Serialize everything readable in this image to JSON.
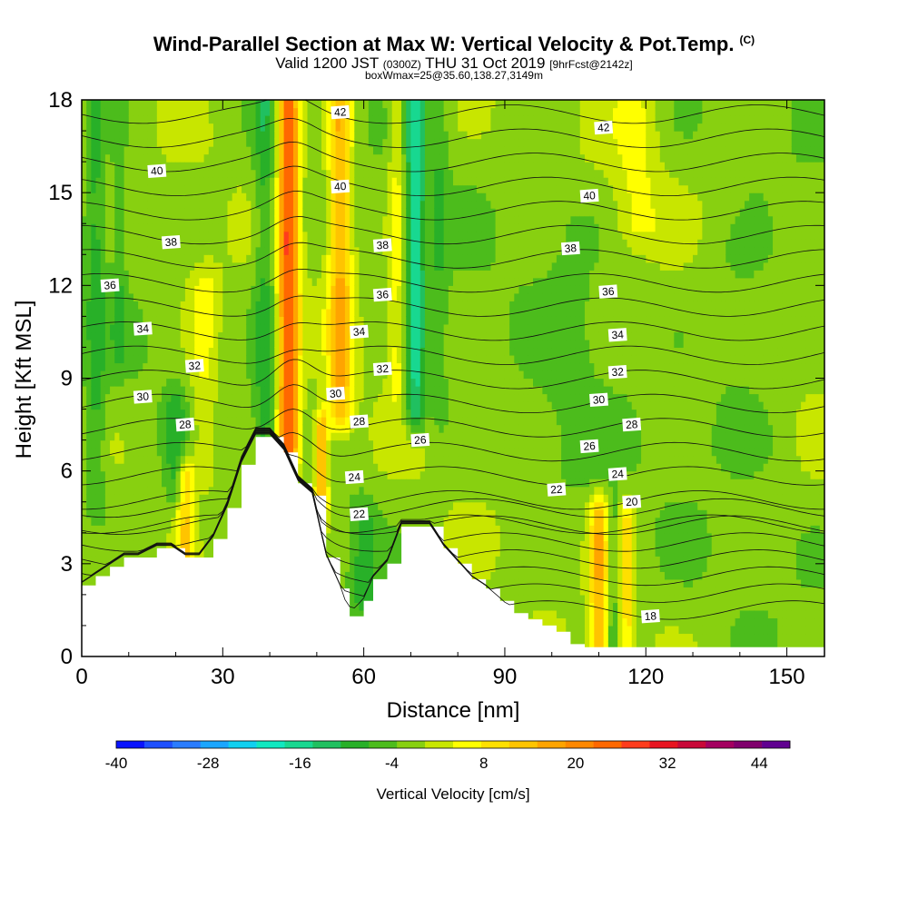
{
  "chart_data": {
    "type": "heatmap",
    "title": "Wind-Parallel Section at Max W: Vertical Velocity & Pot.Temp.",
    "title_mark": "(C)",
    "subtitle_main": "Valid 1200 JST",
    "subtitle_utc": "(0300Z)",
    "subtitle_date": "THU 31 Oct 2019",
    "subtitle_fcst": "[9hrFcst@2142z]",
    "box_line": "boxWmax=25@35.60,138.27,3149m",
    "xlabel": "Distance [nm]",
    "ylabel": "Height [Kft MSL]",
    "xlim": [
      0,
      158
    ],
    "ylim": [
      0,
      18
    ],
    "x_ticks": [
      0,
      30,
      60,
      90,
      120,
      150
    ],
    "y_ticks": [
      0,
      3,
      6,
      9,
      12,
      15,
      18
    ],
    "colorbar": {
      "label": "Vertical Velocity [cm/s]",
      "tick_values": [
        -40,
        -28,
        -16,
        -4,
        8,
        20,
        32,
        44
      ],
      "tick_labels": [
        "-40",
        "-28",
        "-16",
        "-4",
        "8",
        "20",
        "32",
        "44"
      ],
      "range": [
        -40,
        48
      ],
      "step": 4,
      "colors": [
        "#0a14ff",
        "#1e50ff",
        "#2a7cff",
        "#1aa6ff",
        "#10d0f0",
        "#10e8c0",
        "#18d890",
        "#20c060",
        "#28b028",
        "#4cbc1c",
        "#88d010",
        "#c8e600",
        "#ffff00",
        "#ffe000",
        "#ffc400",
        "#ffa400",
        "#ff8800",
        "#ff6800",
        "#ff3c1c",
        "#e81420",
        "#c80838",
        "#a40060",
        "#80006c",
        "#600090"
      ]
    },
    "terrain_profile": {
      "distance_nm": [
        0,
        3,
        6,
        9,
        12,
        16,
        19,
        22,
        25,
        28,
        31,
        34,
        37,
        40,
        43,
        46,
        49,
        52,
        55,
        57,
        60,
        62,
        65,
        68,
        71,
        74,
        77,
        80,
        83,
        86,
        89,
        92,
        95,
        98,
        101,
        104,
        107,
        110,
        115,
        120,
        125,
        130,
        135,
        140,
        145,
        150,
        155,
        158
      ],
      "height_kft": [
        2.3,
        2.6,
        2.9,
        3.2,
        3.2,
        3.5,
        3.5,
        3.2,
        3.2,
        3.8,
        4.8,
        6.2,
        7.1,
        7.1,
        6.6,
        5.6,
        5.2,
        3.2,
        2.2,
        1.3,
        1.8,
        2.5,
        3.0,
        4.2,
        4.2,
        4.2,
        3.5,
        3.0,
        2.5,
        2.2,
        1.8,
        1.4,
        1.2,
        1.0,
        0.8,
        0.4,
        0.3,
        0.3,
        0.3,
        0.3,
        0.3,
        0.3,
        0.3,
        0.3,
        0.3,
        0.3,
        0.3,
        0.3
      ]
    },
    "theta_contours": [
      {
        "value": 18,
        "label_at": [
          121,
          1.3
        ]
      },
      {
        "value": 20,
        "label_at": [
          117,
          5.0
        ]
      },
      {
        "value": 22,
        "label_at": [
          59,
          4.6
        ]
      },
      {
        "value": 22,
        "label_at": [
          101,
          5.4
        ]
      },
      {
        "value": 24,
        "label_at": [
          58,
          5.8
        ]
      },
      {
        "value": 24,
        "label_at": [
          114,
          5.9
        ]
      },
      {
        "value": 26,
        "label_at": [
          72,
          7.0
        ]
      },
      {
        "value": 26,
        "label_at": [
          108,
          6.8
        ]
      },
      {
        "value": 28,
        "label_at": [
          22,
          7.5
        ]
      },
      {
        "value": 28,
        "label_at": [
          59,
          7.6
        ]
      },
      {
        "value": 28,
        "label_at": [
          117,
          7.5
        ]
      },
      {
        "value": 30,
        "label_at": [
          13,
          8.4
        ]
      },
      {
        "value": 30,
        "label_at": [
          54,
          8.5
        ]
      },
      {
        "value": 30,
        "label_at": [
          110,
          8.3
        ]
      },
      {
        "value": 32,
        "label_at": [
          24,
          9.4
        ]
      },
      {
        "value": 32,
        "label_at": [
          64,
          9.3
        ]
      },
      {
        "value": 32,
        "label_at": [
          114,
          9.2
        ]
      },
      {
        "value": 34,
        "label_at": [
          13,
          10.6
        ]
      },
      {
        "value": 34,
        "label_at": [
          59,
          10.5
        ]
      },
      {
        "value": 34,
        "label_at": [
          114,
          10.4
        ]
      },
      {
        "value": 36,
        "label_at": [
          6,
          12.0
        ]
      },
      {
        "value": 36,
        "label_at": [
          64,
          11.7
        ]
      },
      {
        "value": 36,
        "label_at": [
          112,
          11.8
        ]
      },
      {
        "value": 38,
        "label_at": [
          19,
          13.4
        ]
      },
      {
        "value": 38,
        "label_at": [
          64,
          13.3
        ]
      },
      {
        "value": 38,
        "label_at": [
          104,
          13.2
        ]
      },
      {
        "value": 40,
        "label_at": [
          16,
          15.7
        ]
      },
      {
        "value": 40,
        "label_at": [
          55,
          15.2
        ]
      },
      {
        "value": 40,
        "label_at": [
          108,
          14.9
        ]
      },
      {
        "value": 42,
        "label_at": [
          55,
          17.6
        ]
      },
      {
        "value": 42,
        "label_at": [
          111,
          17.1
        ]
      }
    ],
    "w_field": {
      "background_cm_s": 2,
      "features": [
        {
          "x": 44,
          "x_half_width": 2.2,
          "y_min": 6.5,
          "y_max": 18,
          "w": 30
        },
        {
          "x": 55,
          "x_half_width": 2.5,
          "y_min": 8,
          "y_max": 18,
          "w": 18
        },
        {
          "x": 51,
          "x_half_width": 1.5,
          "y_min": 5.2,
          "y_max": 7.2,
          "w": 20
        },
        {
          "x": 39,
          "x_half_width": 2.5,
          "y_min": 7,
          "y_max": 18,
          "w": -8
        },
        {
          "x": 71,
          "x_half_width": 2.0,
          "y_min": 8,
          "y_max": 18,
          "w": -16
        },
        {
          "x": 76,
          "x_half_width": 2.0,
          "y_min": 8,
          "y_max": 18,
          "w": -5
        },
        {
          "x": 67,
          "x_half_width": 1.8,
          "y_min": 9,
          "y_max": 18,
          "w": 8
        },
        {
          "x": 3,
          "x_half_width": 2.0,
          "y_min": 5,
          "y_max": 18,
          "w": -7
        },
        {
          "x": 8,
          "x_half_width": 1.5,
          "y_min": 10,
          "y_max": 18,
          "w": -5
        },
        {
          "x": 22,
          "x_half_width": 1.8,
          "y_min": 3.5,
          "y_max": 5.8,
          "w": 14
        },
        {
          "x": 26,
          "x_half_width": 3.0,
          "y_min": 6,
          "y_max": 12,
          "w": 7
        },
        {
          "x": 20,
          "x_half_width": 2.0,
          "y_min": 5.5,
          "y_max": 8,
          "w": -7
        },
        {
          "x": 110,
          "x_half_width": 1.8,
          "y_min": 0.5,
          "y_max": 4.5,
          "w": 17
        },
        {
          "x": 116,
          "x_half_width": 1.5,
          "y_min": 0.5,
          "y_max": 4.5,
          "w": 11
        },
        {
          "x": 113,
          "x_half_width": 1.2,
          "y_min": 0.5,
          "y_max": 4.5,
          "w": -5
        },
        {
          "x": 60,
          "x_half_width": 3.0,
          "y_min": 2.0,
          "y_max": 4.5,
          "w": -7
        },
        {
          "x": 104,
          "x_half_width": 6.0,
          "y_min": 6,
          "y_max": 14,
          "w": -3
        },
        {
          "x": 118,
          "x_half_width": 5.0,
          "y_min": 14,
          "y_max": 18,
          "w": 6
        },
        {
          "x": 140,
          "x_half_width": 8.0,
          "y_min": 7,
          "y_max": 13,
          "w": -3
        }
      ]
    }
  }
}
